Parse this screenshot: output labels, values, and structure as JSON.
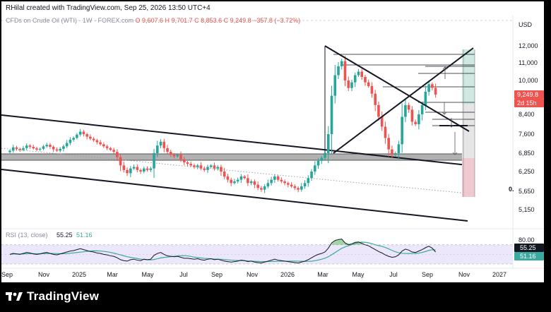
{
  "header": {
    "attribution": "RHilal created with TradingView.com, Sep 25, 2026 13:50 UTC+4",
    "symbol": "CFDs on Crude Oil (WTI) · 1W · FOREX.com",
    "ohlc": "O 9,607.6  H 9,701.7  C 8,853.6  C 9,249.8  −357.8 (−3.72%)",
    "currency": "USD"
  },
  "price_tags": {
    "last": "9,249.8",
    "countdown": "2d 15h",
    "marker": "0."
  },
  "rsi_legend": {
    "label": "RSI (13, close)",
    "rsi_value": "55.25",
    "ma_value": "51.16"
  },
  "rsi_tags": {
    "rsi": "55.25",
    "ma": "51.16"
  },
  "footer": {
    "brand": "TradingView"
  },
  "colors": {
    "up": "#26a69a",
    "down": "#ef5350",
    "rsi_line": "#131722",
    "rsi_ma": "#3aa9a0",
    "rsi_band": "#ede7fb"
  },
  "chart_data": {
    "type": "candlestick",
    "y_axis_ticks": [
      "12,000",
      "11,000",
      "10,000",
      "9,250",
      "8,400",
      "7,600",
      "6,850",
      "6,250",
      "5,650",
      "5,150"
    ],
    "x_axis_ticks": [
      "Sep",
      "Nov",
      "2025",
      "Mar",
      "May",
      "Jul",
      "Sep",
      "Nov",
      "2026",
      "Mar",
      "May",
      "Jul",
      "Sep",
      "Nov",
      "2027"
    ],
    "rsi_axis_ticks": [
      "80.00"
    ],
    "ylim": [
      4750,
      12400
    ],
    "close": [
      6950,
      7080,
      7020,
      6980,
      7050,
      7150,
      7100,
      7040,
      6990,
      7020,
      7120,
      7180,
      7100,
      7000,
      6950,
      7020,
      7120,
      7250,
      7380,
      7450,
      7580,
      7700,
      7600,
      7500,
      7420,
      7360,
      7280,
      7200,
      7120,
      7050,
      6980,
      6900,
      6720,
      6450,
      6300,
      6200,
      6350,
      6400,
      6300,
      6250,
      6350,
      6300,
      6350,
      6850,
      7150,
      7300,
      7050,
      6900,
      6800,
      6750,
      6800,
      6650,
      6550,
      6500,
      6450,
      6400,
      6450,
      6350,
      6300,
      6400,
      6450,
      6350,
      6400,
      6250,
      6100,
      6000,
      5900,
      5950,
      6000,
      6100,
      6050,
      5900,
      5950,
      5850,
      5750,
      5700,
      5800,
      5900,
      6000,
      6100,
      6000,
      5950,
      5900,
      5850,
      5800,
      5750,
      5700,
      5800,
      5900,
      6050,
      6250,
      6450,
      6600,
      6700,
      6850,
      7600,
      9200,
      10300,
      10800,
      11100,
      10000,
      9600,
      9900,
      10300,
      10500,
      10200,
      9900,
      9700,
      9300,
      8800,
      8300,
      7900,
      7450,
      7000,
      6800,
      6850,
      7200,
      8300,
      8800,
      8600,
      8100,
      8000,
      8400,
      8800,
      9400,
      9800,
      9607,
      9250
    ],
    "annotations": {
      "hlines_at": [
        11100,
        10750,
        10400,
        10050,
        9250,
        8850,
        8450,
        8200,
        7950
      ],
      "zones": [
        [
          6900,
          6720
        ]
      ],
      "arrows": [
        "up",
        "down",
        "down",
        "down"
      ]
    },
    "rsi": [
      50,
      52,
      51,
      50,
      52,
      54,
      53,
      51,
      50,
      51,
      53,
      54,
      52,
      50,
      49,
      51,
      53,
      55,
      57,
      58,
      60,
      62,
      60,
      58,
      56,
      55,
      53,
      52,
      50,
      49,
      47,
      46,
      43,
      39,
      37,
      36,
      39,
      40,
      38,
      37,
      40,
      39,
      40,
      48,
      52,
      54,
      50,
      47,
      46,
      45,
      46,
      44,
      42,
      42,
      41,
      40,
      41,
      39,
      38,
      40,
      41,
      39,
      40,
      38,
      36,
      35,
      34,
      35,
      36,
      38,
      37,
      35,
      36,
      34,
      33,
      32,
      34,
      36,
      38,
      40,
      38,
      37,
      36,
      35,
      34,
      33,
      32,
      34,
      36,
      39,
      43,
      47,
      50,
      52,
      55,
      63,
      74,
      79,
      81,
      82,
      74,
      70,
      72,
      75,
      76,
      73,
      70,
      68,
      64,
      60,
      56,
      53,
      49,
      46,
      44,
      45,
      49,
      57,
      61,
      59,
      55,
      54,
      57,
      60,
      64,
      67,
      63,
      55
    ]
  }
}
